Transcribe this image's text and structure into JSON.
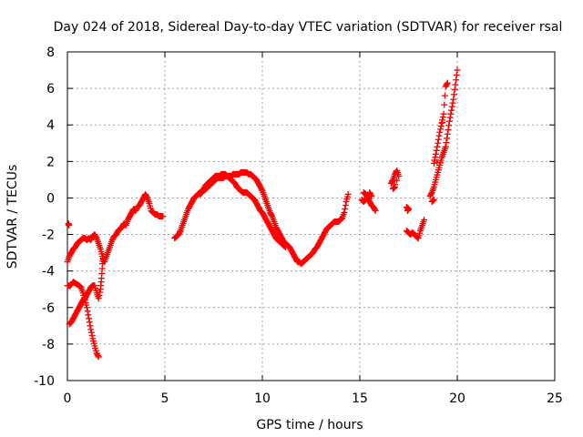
{
  "chart_data": {
    "type": "scatter",
    "title": "Day 024 of 2018, Sidereal Day-to-day VTEC variation (SDTVAR) for receiver rsal",
    "xlabel": "GPS time / hours",
    "ylabel": "SDTVAR / TECUs",
    "xlim": [
      0,
      25
    ],
    "ylim": [
      -10,
      8
    ],
    "xticks": [
      "0",
      "5",
      "10",
      "15",
      "20",
      "25"
    ],
    "yticks": [
      "-10",
      "-8",
      "-6",
      "-4",
      "-2",
      "0",
      "2",
      "4",
      "6",
      "8"
    ],
    "grid": true,
    "marker": "+",
    "series": [
      {
        "name": "SDTVAR",
        "color": "#ff0000",
        "segments": [
          [
            [
              0.05,
              -1.4
            ],
            [
              0.08,
              -1.5
            ]
          ],
          [
            [
              0.0,
              -3.5
            ],
            [
              0.1,
              -3.2
            ],
            [
              0.2,
              -3.0
            ],
            [
              0.3,
              -2.8
            ],
            [
              0.4,
              -2.7
            ],
            [
              0.5,
              -2.5
            ],
            [
              0.6,
              -2.4
            ],
            [
              0.7,
              -2.3
            ],
            [
              0.8,
              -2.2
            ],
            [
              0.9,
              -2.2
            ],
            [
              1.0,
              -2.3
            ],
            [
              1.1,
              -2.2
            ],
            [
              1.2,
              -2.3
            ],
            [
              1.3,
              -2.1
            ],
            [
              1.4,
              -2.0
            ],
            [
              1.5,
              -2.2
            ],
            [
              1.6,
              -2.5
            ],
            [
              1.7,
              -2.8
            ],
            [
              1.8,
              -3.2
            ],
            [
              1.9,
              -3.5
            ],
            [
              2.0,
              -3.2
            ],
            [
              2.1,
              -2.9
            ],
            [
              2.2,
              -2.6
            ],
            [
              2.3,
              -2.3
            ],
            [
              2.4,
              -2.1
            ],
            [
              2.5,
              -2.0
            ],
            [
              2.6,
              -1.8
            ],
            [
              2.7,
              -1.7
            ],
            [
              2.8,
              -1.6
            ],
            [
              2.9,
              -1.4
            ],
            [
              3.0,
              -1.5
            ],
            [
              3.1,
              -1.2
            ],
            [
              3.2,
              -1.0
            ],
            [
              3.3,
              -0.8
            ],
            [
              3.4,
              -0.6
            ],
            [
              3.5,
              -0.7
            ],
            [
              3.6,
              -0.5
            ],
            [
              3.7,
              -0.4
            ],
            [
              3.8,
              -0.2
            ],
            [
              3.9,
              0.0
            ],
            [
              4.0,
              0.2
            ],
            [
              4.1,
              0.0
            ],
            [
              4.2,
              -0.3
            ],
            [
              4.3,
              -0.7
            ],
            [
              4.4,
              -0.8
            ],
            [
              4.5,
              -0.9
            ],
            [
              4.6,
              -0.9
            ],
            [
              4.7,
              -1.0
            ],
            [
              4.8,
              -1.0
            ],
            [
              4.9,
              -1.0
            ]
          ],
          [
            [
              0.0,
              -4.8
            ],
            [
              0.15,
              -4.8
            ],
            [
              0.3,
              -4.6
            ],
            [
              0.45,
              -4.7
            ],
            [
              0.6,
              -4.8
            ],
            [
              0.7,
              -4.9
            ],
            [
              0.8,
              -5.2
            ],
            [
              0.9,
              -5.6
            ],
            [
              1.0,
              -6.0
            ],
            [
              1.1,
              -6.6
            ],
            [
              1.2,
              -7.2
            ],
            [
              1.3,
              -7.7
            ],
            [
              1.4,
              -8.1
            ],
            [
              1.5,
              -8.5
            ],
            [
              1.6,
              -8.7
            ]
          ],
          [
            [
              0.1,
              -6.9
            ],
            [
              0.2,
              -6.8
            ],
            [
              0.3,
              -6.6
            ],
            [
              0.4,
              -6.4
            ],
            [
              0.5,
              -6.2
            ],
            [
              0.6,
              -6.0
            ],
            [
              0.7,
              -5.8
            ],
            [
              0.8,
              -5.6
            ],
            [
              0.9,
              -5.5
            ],
            [
              1.0,
              -5.3
            ],
            [
              1.1,
              -5.1
            ],
            [
              1.2,
              -4.9
            ],
            [
              1.3,
              -4.8
            ],
            [
              1.4,
              -4.8
            ],
            [
              1.5,
              -5.2
            ],
            [
              1.6,
              -5.5
            ],
            [
              1.7,
              -5.0
            ],
            [
              1.75,
              -4.4
            ],
            [
              1.8,
              -3.6
            ],
            [
              1.85,
              -3.2
            ]
          ],
          [
            [
              5.5,
              -2.2
            ],
            [
              5.6,
              -2.1
            ],
            [
              5.7,
              -2.0
            ],
            [
              5.8,
              -1.8
            ],
            [
              5.9,
              -1.5
            ],
            [
              6.0,
              -1.2
            ],
            [
              6.1,
              -0.9
            ],
            [
              6.2,
              -0.6
            ],
            [
              6.3,
              -0.4
            ],
            [
              6.4,
              -0.2
            ],
            [
              6.5,
              0.0
            ],
            [
              6.6,
              0.1
            ],
            [
              6.7,
              0.2
            ],
            [
              6.8,
              0.3
            ],
            [
              6.9,
              0.4
            ],
            [
              7.0,
              0.4
            ],
            [
              7.1,
              0.5
            ],
            [
              7.2,
              0.6
            ],
            [
              7.3,
              0.7
            ],
            [
              7.4,
              0.8
            ],
            [
              7.5,
              0.9
            ],
            [
              7.6,
              1.0
            ],
            [
              7.7,
              1.1
            ],
            [
              7.8,
              1.1
            ],
            [
              7.9,
              1.1
            ],
            [
              8.0,
              1.1
            ],
            [
              8.1,
              1.2
            ],
            [
              8.2,
              1.2
            ],
            [
              8.3,
              1.2
            ],
            [
              8.4,
              1.2
            ],
            [
              8.5,
              1.3
            ],
            [
              8.6,
              1.3
            ],
            [
              8.7,
              1.3
            ],
            [
              8.8,
              1.3
            ],
            [
              8.9,
              1.4
            ],
            [
              9.0,
              1.4
            ],
            [
              9.1,
              1.4
            ],
            [
              9.2,
              1.4
            ],
            [
              9.3,
              1.3
            ],
            [
              9.4,
              1.3
            ],
            [
              9.5,
              1.2
            ],
            [
              9.6,
              1.1
            ],
            [
              9.7,
              1.0
            ],
            [
              9.8,
              0.8
            ],
            [
              9.9,
              0.6
            ],
            [
              10.0,
              0.4
            ],
            [
              10.1,
              0.1
            ],
            [
              10.2,
              -0.2
            ],
            [
              10.3,
              -0.5
            ],
            [
              10.4,
              -0.8
            ],
            [
              10.5,
              -1.0
            ],
            [
              10.6,
              -1.3
            ],
            [
              10.7,
              -1.6
            ],
            [
              10.8,
              -1.8
            ],
            [
              10.9,
              -2.0
            ],
            [
              11.0,
              -2.2
            ],
            [
              11.1,
              -2.4
            ],
            [
              11.2,
              -2.5
            ],
            [
              11.3,
              -2.6
            ],
            [
              11.4,
              -2.7
            ],
            [
              11.5,
              -2.9
            ],
            [
              11.6,
              -3.1
            ],
            [
              11.7,
              -3.3
            ],
            [
              11.8,
              -3.5
            ],
            [
              11.9,
              -3.5
            ],
            [
              12.0,
              -3.6
            ],
            [
              12.1,
              -3.5
            ],
            [
              12.2,
              -3.4
            ],
            [
              12.3,
              -3.3
            ],
            [
              12.4,
              -3.2
            ],
            [
              12.5,
              -3.1
            ],
            [
              12.6,
              -3.0
            ],
            [
              12.7,
              -2.8
            ],
            [
              12.8,
              -2.7
            ],
            [
              12.9,
              -2.5
            ],
            [
              13.0,
              -2.3
            ],
            [
              13.1,
              -2.1
            ],
            [
              13.2,
              -1.9
            ],
            [
              13.3,
              -1.7
            ],
            [
              13.4,
              -1.6
            ],
            [
              13.5,
              -1.5
            ],
            [
              13.6,
              -1.4
            ],
            [
              13.7,
              -1.3
            ],
            [
              13.8,
              -1.3
            ],
            [
              13.9,
              -1.3
            ],
            [
              14.0,
              -1.2
            ],
            [
              14.1,
              -1.1
            ],
            [
              14.2,
              -0.8
            ],
            [
              14.3,
              -0.2
            ],
            [
              14.4,
              0.2
            ]
          ],
          [
            [
              6.8,
              0.2
            ],
            [
              6.9,
              0.3
            ],
            [
              7.0,
              0.5
            ],
            [
              7.1,
              0.7
            ],
            [
              7.2,
              0.8
            ],
            [
              7.3,
              0.9
            ],
            [
              7.4,
              1.0
            ],
            [
              7.5,
              1.1
            ],
            [
              7.6,
              1.2
            ],
            [
              7.7,
              1.2
            ],
            [
              7.8,
              1.2
            ],
            [
              7.9,
              1.3
            ],
            [
              8.0,
              1.3
            ],
            [
              8.1,
              1.3
            ],
            [
              8.2,
              1.2
            ],
            [
              8.3,
              1.1
            ],
            [
              8.4,
              1.0
            ],
            [
              8.5,
              0.9
            ],
            [
              8.6,
              0.8
            ],
            [
              8.7,
              0.6
            ],
            [
              8.8,
              0.5
            ],
            [
              8.9,
              0.4
            ],
            [
              9.0,
              0.3
            ],
            [
              9.1,
              0.3
            ],
            [
              9.2,
              0.3
            ],
            [
              9.3,
              0.2
            ],
            [
              9.4,
              0.1
            ],
            [
              9.5,
              0.0
            ],
            [
              9.6,
              -0.1
            ],
            [
              9.7,
              -0.3
            ],
            [
              9.8,
              -0.5
            ],
            [
              9.9,
              -0.7
            ],
            [
              10.0,
              -0.8
            ],
            [
              10.1,
              -1.0
            ],
            [
              10.2,
              -1.2
            ],
            [
              10.3,
              -1.4
            ],
            [
              10.4,
              -1.6
            ],
            [
              10.5,
              -1.8
            ],
            [
              10.6,
              -2.0
            ],
            [
              10.7,
              -2.2
            ],
            [
              10.8,
              -2.3
            ],
            [
              10.9,
              -2.4
            ],
            [
              11.0,
              -2.5
            ],
            [
              11.1,
              -2.6
            ],
            [
              11.2,
              -2.7
            ]
          ],
          [
            [
              15.2,
              0.3
            ],
            [
              15.3,
              0.2
            ],
            [
              15.4,
              0.0
            ],
            [
              15.5,
              -0.2
            ],
            [
              15.6,
              -0.4
            ],
            [
              15.7,
              -0.5
            ],
            [
              15.8,
              -0.7
            ]
          ],
          [
            [
              15.1,
              -0.1
            ],
            [
              15.2,
              -0.2
            ],
            [
              15.3,
              -0.1
            ],
            [
              15.5,
              0.3
            ],
            [
              15.6,
              0.1
            ]
          ],
          [
            [
              16.6,
              0.8
            ],
            [
              16.7,
              1.0
            ],
            [
              16.8,
              1.3
            ],
            [
              16.9,
              1.5
            ],
            [
              17.0,
              1.2
            ],
            [
              16.7,
              0.5
            ],
            [
              16.8,
              0.6
            ]
          ],
          [
            [
              17.4,
              -1.8
            ],
            [
              17.5,
              -1.9
            ],
            [
              17.6,
              -2.0
            ],
            [
              17.7,
              -1.9
            ],
            [
              17.8,
              -2.0
            ],
            [
              17.9,
              -2.1
            ],
            [
              18.0,
              -2.2
            ],
            [
              18.1,
              -1.8
            ],
            [
              18.2,
              -1.5
            ],
            [
              18.3,
              -1.2
            ]
          ],
          [
            [
              17.4,
              -0.5
            ],
            [
              17.5,
              -0.6
            ],
            [
              17.45,
              -0.7
            ]
          ],
          [
            [
              18.6,
              0.1
            ],
            [
              18.7,
              0.3
            ],
            [
              18.8,
              0.6
            ],
            [
              18.9,
              1.0
            ],
            [
              19.0,
              1.4
            ],
            [
              19.1,
              1.8
            ],
            [
              19.2,
              2.2
            ],
            [
              19.3,
              2.5
            ],
            [
              19.4,
              2.8
            ],
            [
              19.5,
              3.5
            ],
            [
              19.6,
              4.2
            ],
            [
              19.7,
              4.8
            ],
            [
              19.8,
              5.4
            ],
            [
              19.9,
              6.2
            ],
            [
              20.0,
              7.0
            ]
          ],
          [
            [
              18.8,
              1.9
            ],
            [
              18.9,
              2.4
            ],
            [
              19.0,
              3.0
            ],
            [
              19.1,
              3.6
            ],
            [
              19.2,
              4.1
            ],
            [
              19.3,
              4.6
            ],
            [
              19.4,
              6.1
            ],
            [
              19.5,
              6.3
            ],
            [
              18.7,
              -0.2
            ],
            [
              18.8,
              -0.1
            ]
          ]
        ]
      }
    ]
  }
}
